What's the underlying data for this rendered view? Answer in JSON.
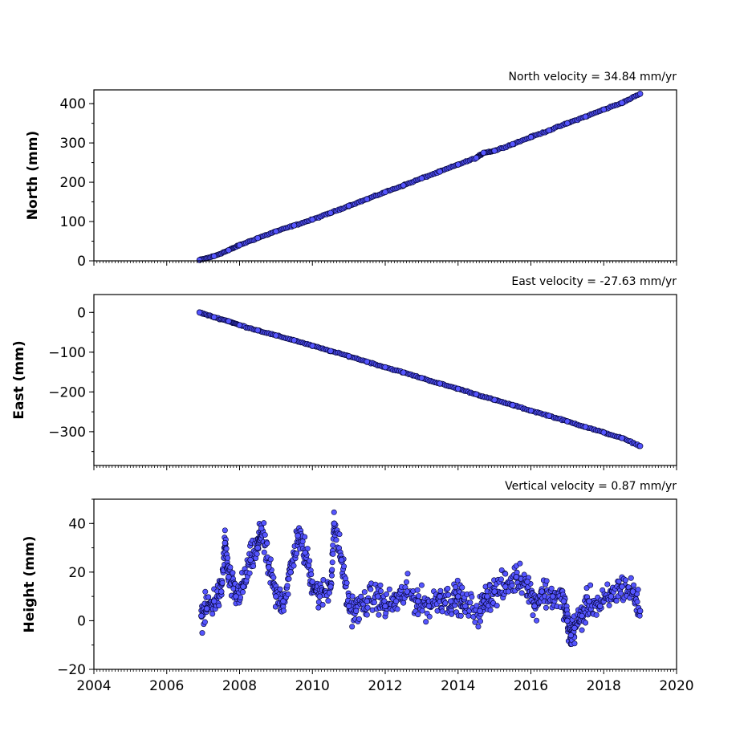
{
  "chart_data": [
    {
      "type": "scatter",
      "title": "North velocity = 34.84 mm/yr",
      "xlabel": "",
      "ylabel": "North (mm)",
      "xlim": [
        2004,
        2020
      ],
      "ylim": [
        0,
        435
      ],
      "yticks": [
        0,
        100,
        200,
        300,
        400
      ],
      "xticks": [
        2004,
        2006,
        2008,
        2010,
        2012,
        2014,
        2016,
        2018,
        2020
      ],
      "show_xticklabels": false,
      "grid": false,
      "marker_color": "#5555ff",
      "marker_edge": "#000033",
      "series": [
        {
          "x": [
            2006.9,
            2007.3,
            2007.7,
            2008.0,
            2008.5,
            2009.0,
            2009.5,
            2010.0,
            2010.5,
            2011.0,
            2011.5,
            2012.0,
            2012.5,
            2013.0,
            2013.5,
            2014.0,
            2014.5,
            2014.7,
            2015.0,
            2015.5,
            2016.0,
            2016.5,
            2017.0,
            2017.5,
            2018.0,
            2018.5,
            2019.0
          ],
          "y": [
            2,
            12,
            27,
            40,
            58,
            75,
            90,
            105,
            122,
            140,
            157,
            175,
            192,
            210,
            227,
            245,
            262,
            275,
            280,
            297,
            315,
            332,
            350,
            367,
            385,
            402,
            425
          ]
        }
      ]
    },
    {
      "type": "scatter",
      "title": "East velocity = -27.63 mm/yr",
      "xlabel": "",
      "ylabel": "East (mm)",
      "xlim": [
        2004,
        2020
      ],
      "ylim": [
        -385,
        45
      ],
      "yticks": [
        0,
        -100,
        -200,
        -300
      ],
      "yticklabels": [
        "0",
        "−100",
        "−200",
        "−300"
      ],
      "xticks": [
        2004,
        2006,
        2008,
        2010,
        2012,
        2014,
        2016,
        2018,
        2020
      ],
      "show_xticklabels": false,
      "grid": false,
      "marker_color": "#5555ff",
      "marker_edge": "#000033",
      "series": [
        {
          "x": [
            2006.9,
            2007.3,
            2007.7,
            2008.0,
            2008.5,
            2009.0,
            2009.5,
            2010.0,
            2010.5,
            2011.0,
            2011.5,
            2012.0,
            2012.5,
            2013.0,
            2013.5,
            2014.0,
            2014.5,
            2015.0,
            2015.5,
            2016.0,
            2016.5,
            2017.0,
            2017.5,
            2018.0,
            2018.5,
            2019.0
          ],
          "y": [
            0,
            -12,
            -22,
            -32,
            -45,
            -58,
            -70,
            -84,
            -97,
            -110,
            -124,
            -138,
            -151,
            -165,
            -179,
            -192,
            -206,
            -220,
            -233,
            -247,
            -260,
            -274,
            -288,
            -302,
            -316,
            -336
          ]
        }
      ]
    },
    {
      "type": "scatter",
      "title": "Vertical velocity = 0.87 mm/yr",
      "xlabel": "",
      "ylabel": "Height (mm)",
      "xlim": [
        2004,
        2020
      ],
      "ylim": [
        -20,
        50
      ],
      "yticks": [
        40,
        20,
        0,
        -20
      ],
      "yticklabels": [
        "40",
        "20",
        "0",
        "−20"
      ],
      "xticks": [
        2004,
        2006,
        2008,
        2010,
        2012,
        2014,
        2016,
        2018,
        2020
      ],
      "xticklabels": [
        "2004",
        "2006",
        "2008",
        "2010",
        "2012",
        "2014",
        "2016",
        "2018",
        "2020"
      ],
      "show_xticklabels": true,
      "grid": false,
      "marker_color": "#5555ff",
      "marker_edge": "#000033",
      "series": [
        {
          "x": [
            2006.95,
            2007.1,
            2007.3,
            2007.5,
            2007.6,
            2007.7,
            2007.9,
            2008.1,
            2008.3,
            2008.5,
            2008.6,
            2008.8,
            2009.0,
            2009.2,
            2009.4,
            2009.6,
            2009.8,
            2010.0,
            2010.2,
            2010.5,
            2010.6,
            2010.8,
            2011.0,
            2011.2,
            2011.5,
            2011.8,
            2012.0,
            2012.3,
            2012.6,
            2012.9,
            2013.2,
            2013.5,
            2013.8,
            2014.0,
            2014.2,
            2014.6,
            2014.8,
            2015.0,
            2015.3,
            2015.6,
            2015.9,
            2016.1,
            2016.3,
            2016.6,
            2016.9,
            2017.0,
            2017.1,
            2017.2,
            2017.4,
            2017.6,
            2017.9,
            2018.2,
            2018.5,
            2018.8,
            2019.0
          ],
          "y": [
            2,
            5,
            8,
            12,
            32,
            18,
            10,
            14,
            25,
            30,
            38,
            22,
            10,
            8,
            20,
            35,
            28,
            16,
            10,
            14,
            40,
            25,
            6,
            4,
            8,
            10,
            6,
            8,
            12,
            8,
            6,
            10,
            8,
            10,
            6,
            4,
            10,
            12,
            14,
            18,
            16,
            6,
            12,
            10,
            8,
            0,
            -6,
            -3,
            2,
            8,
            6,
            10,
            14,
            12,
            4
          ]
        }
      ]
    }
  ]
}
